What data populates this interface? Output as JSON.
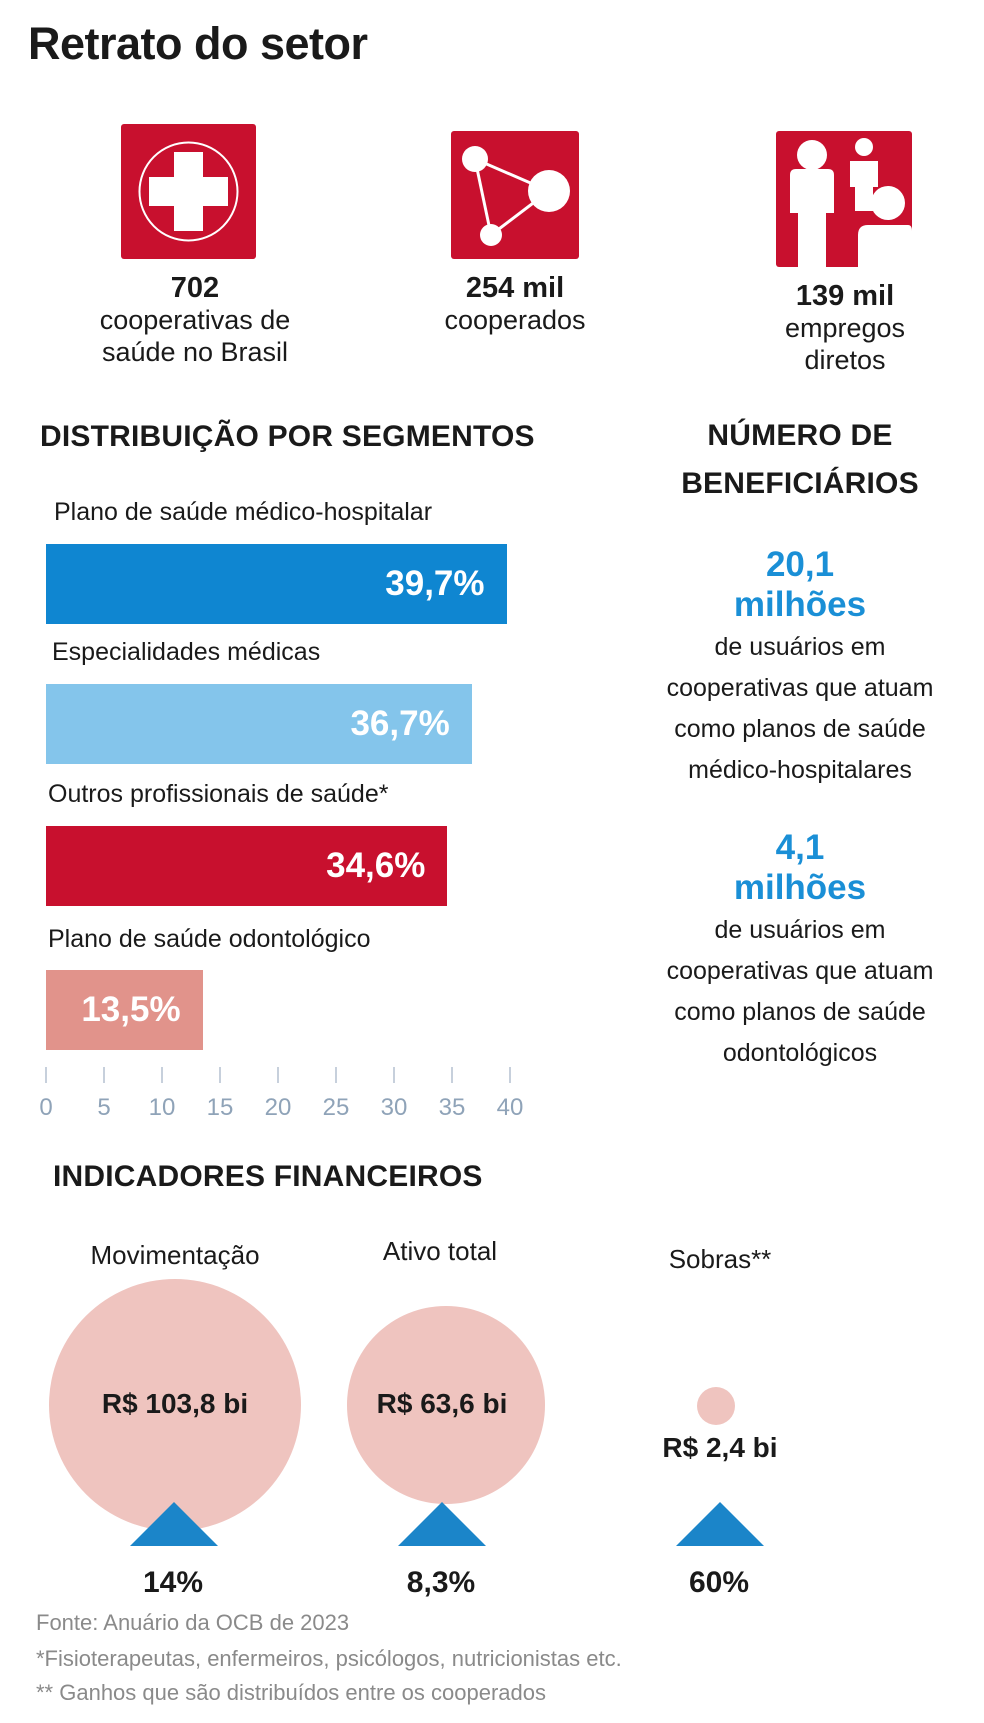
{
  "title": "Retrato do setor",
  "stats": [
    {
      "value": "702",
      "desc_lines": [
        "cooperativas de",
        "saúde no Brasil"
      ],
      "icon": "medical-cross-icon"
    },
    {
      "value": "254 mil",
      "desc_lines": [
        "cooperados"
      ],
      "icon": "network-nodes-icon"
    },
    {
      "value": "139 mil",
      "desc_lines": [
        "empregos",
        "diretos"
      ],
      "icon": "people-icon"
    }
  ],
  "segments_title": "DISTRIBUIÇÃO POR SEGMENTOS",
  "beneficiaries_title_lines": [
    "NÚMERO DE",
    "BENEFICIÁRIOS"
  ],
  "chart_data": {
    "type": "bar",
    "orientation": "horizontal",
    "categories": [
      "Plano de saúde médico-hospitalar",
      "Especialidades médicas",
      "Outros profissionais de saúde*",
      "Plano de saúde odontológico"
    ],
    "values": [
      39.7,
      36.7,
      34.6,
      13.5
    ],
    "value_labels": [
      "39,7%",
      "36,7%",
      "34,6%",
      "13,5%"
    ],
    "colors": [
      "#0f86d1",
      "#84c5eb",
      "#c8102e",
      "#e1938b"
    ],
    "xlim": [
      0,
      40
    ],
    "xticks": [
      "0",
      "5",
      "10",
      "15",
      "20",
      "25",
      "30",
      "35",
      "40"
    ],
    "grid": false
  },
  "beneficiaries": [
    {
      "value_lines": [
        "20,1",
        "milhões"
      ],
      "desc_lines": [
        "de usuários em",
        "cooperativas que atuam",
        "como planos de saúde",
        "médico-hospitalares"
      ]
    },
    {
      "value_lines": [
        "4,1",
        "milhões"
      ],
      "desc_lines": [
        "de usuários em",
        "cooperativas que atuam",
        "como planos de saúde",
        "odontológicos"
      ]
    }
  ],
  "financial_title": "INDICADORES FINANCEIROS",
  "financial": [
    {
      "label": "Movimentação",
      "value": "R$ 103,8 bi",
      "amount": 103.8,
      "change": "14%"
    },
    {
      "label": "Ativo total",
      "value": "R$ 63,6 bi",
      "amount": 63.6,
      "change": "8,3%"
    },
    {
      "label": "Sobras**",
      "value": "R$ 2,4 bi",
      "amount": 2.4,
      "change": "60%"
    }
  ],
  "colors": {
    "brand_red": "#c8102e",
    "accent_blue": "#1a8fd6",
    "circle": "#efc4bf",
    "arrow": "#1b85c9"
  },
  "footnotes": [
    "Fonte: Anuário da OCB de 2023",
    "*Fisioterapeutas, enfermeiros, psicólogos, nutricionistas etc.",
    "** Ganhos que são distribuídos entre os cooperados"
  ]
}
